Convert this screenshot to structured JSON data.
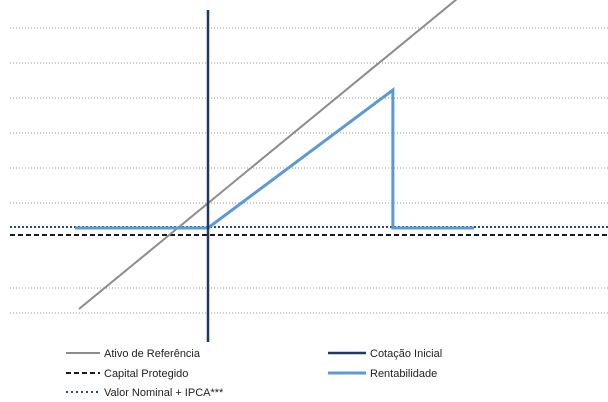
{
  "chart_data": {
    "type": "line",
    "title": "",
    "xlabel": "",
    "ylabel": "",
    "xlim": [
      -1.0,
      2.0
    ],
    "ylim": [
      -0.9,
      2.5
    ],
    "grid": "horizontal-dotted",
    "horizontal_gridlines": [
      -0.85,
      -0.6,
      0.25,
      0.6,
      0.95,
      1.3,
      1.65,
      2.0,
      2.35
    ],
    "series": [
      {
        "name": "Ativo de Referência",
        "color": "#8c8c8c",
        "style": "solid",
        "points": [
          [
            -0.97,
            -0.81
          ],
          [
            2.0,
            2.43
          ]
        ]
      },
      {
        "name": "Cotação Inicial",
        "color": "#1f3864",
        "style": "solid",
        "vertical_at_x": 0.0
      },
      {
        "name": "Capital Protegido",
        "color": "#1a1a1a",
        "style": "dashed",
        "y": -0.07
      },
      {
        "name": "Rentabilidade",
        "color": "#5b9bd5",
        "style": "solid",
        "points": [
          [
            -1.0,
            0.0
          ],
          [
            0.0,
            0.0
          ],
          [
            1.39,
            1.38
          ],
          [
            1.39,
            0.0
          ],
          [
            2.0,
            0.0
          ]
        ]
      },
      {
        "name": "Valor Nominal + IPCA***",
        "color": "#1f4e79",
        "style": "dotted",
        "y": 0.01
      }
    ]
  },
  "legend": {
    "items": [
      {
        "label": "Ativo de Referência",
        "color": "#8c8c8c",
        "style": "solid"
      },
      {
        "label": "Cotação Inicial",
        "color": "#1f3864",
        "style": "solid"
      },
      {
        "label": "Capital Protegido",
        "color": "#1a1a1a",
        "style": "dashed"
      },
      {
        "label": "Rentabilidade",
        "color": "#5b9bd5",
        "style": "solid"
      },
      {
        "label": "Valor Nominal + IPCA***",
        "color": "#1f4e79",
        "style": "dotted"
      }
    ]
  }
}
